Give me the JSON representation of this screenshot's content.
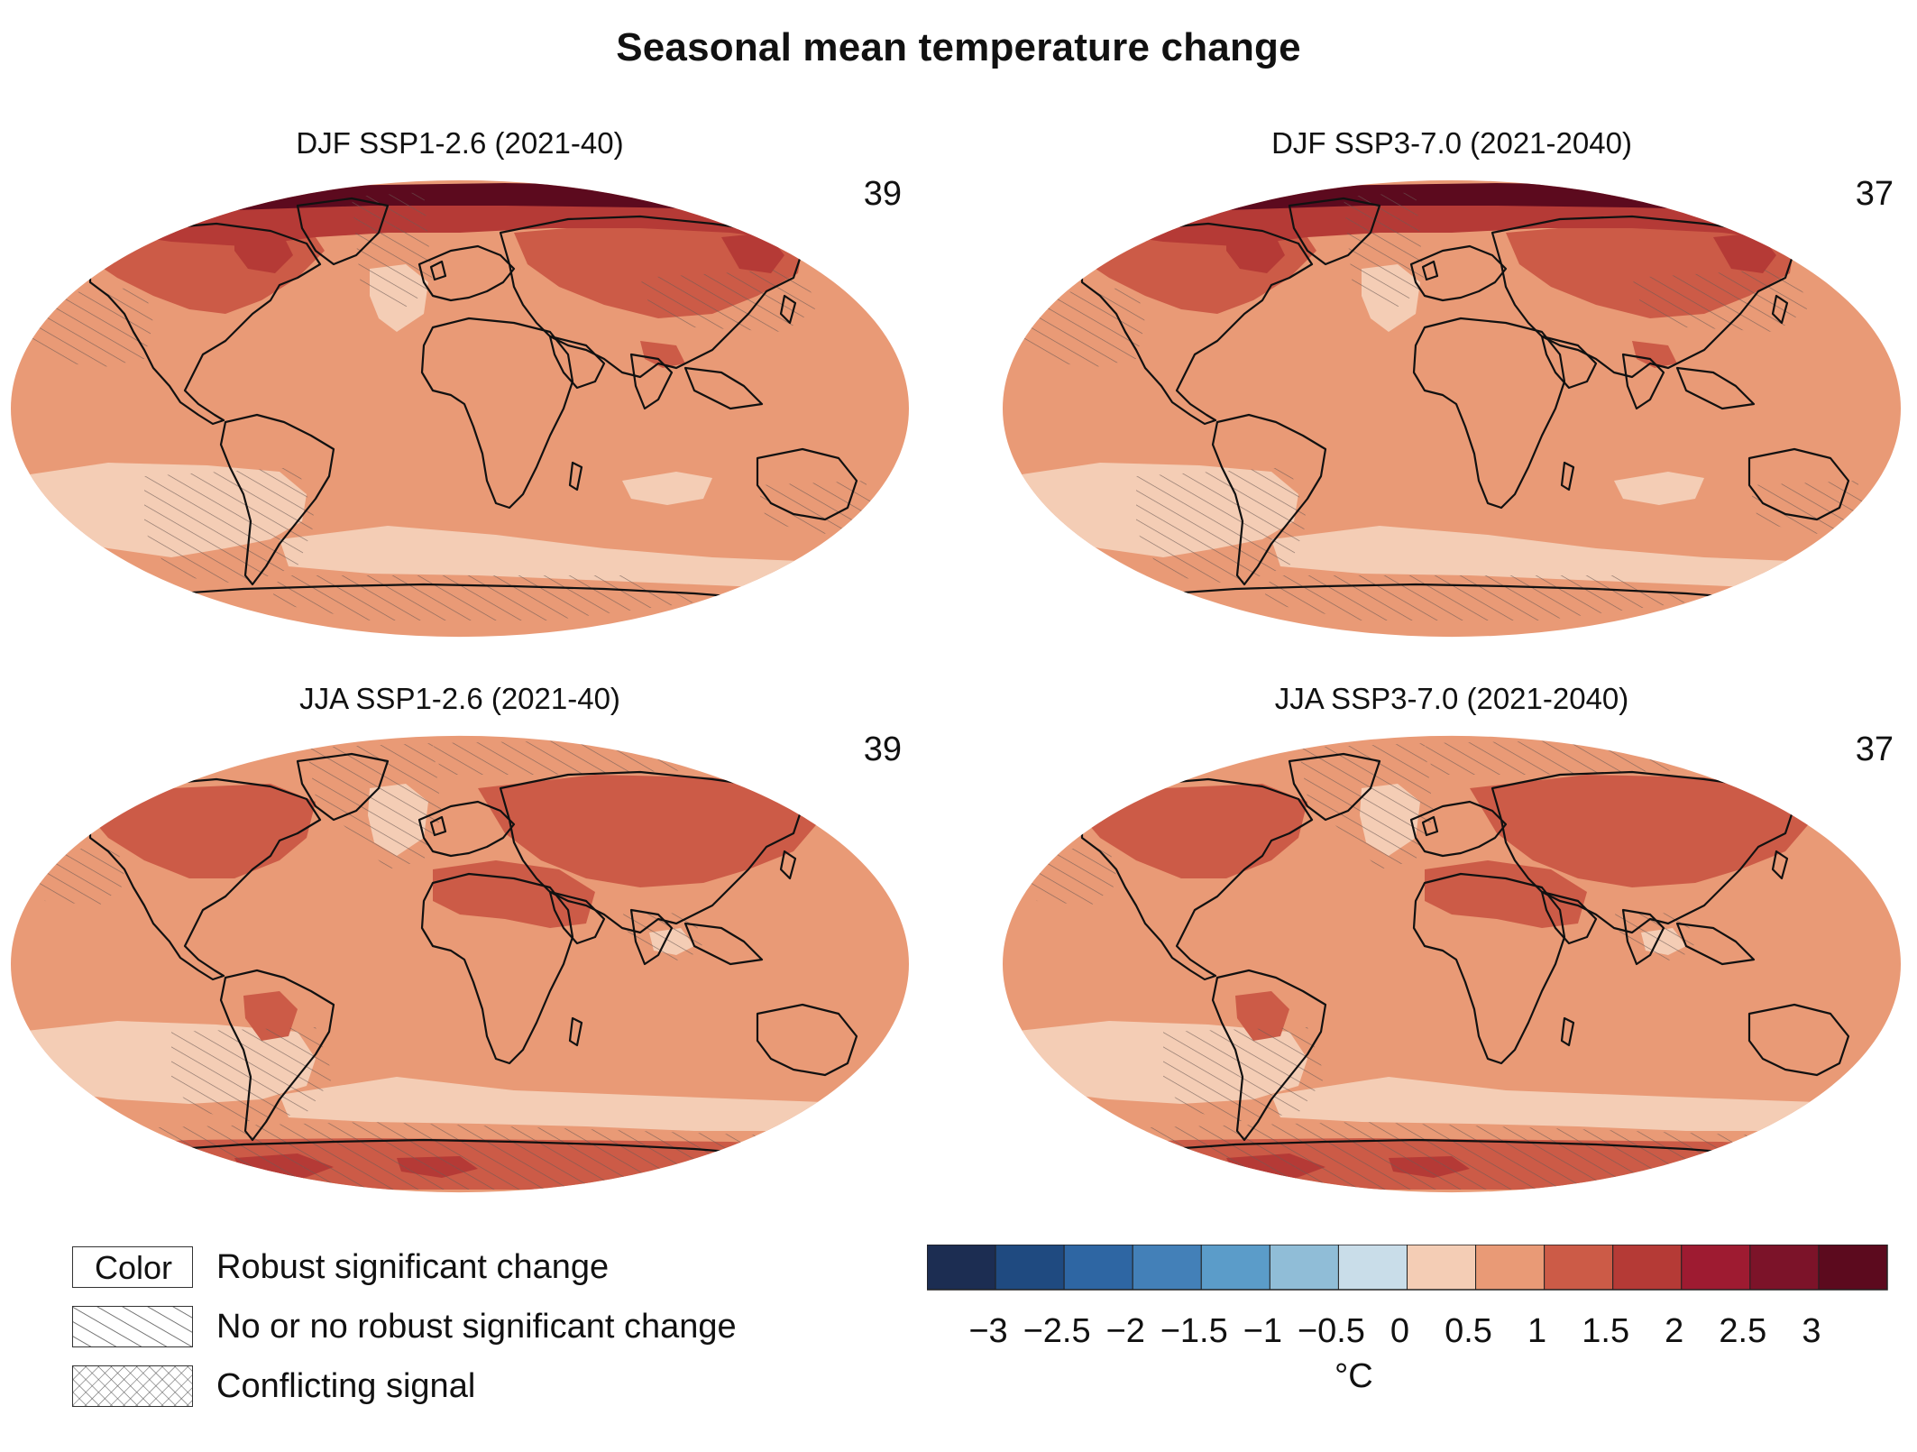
{
  "title": "Seasonal mean temperature change",
  "panels": [
    {
      "title": "DJF SSP1-2.6 (2021-40)",
      "count": "39",
      "season": "DJF"
    },
    {
      "title": "DJF SSP3-7.0 (2021-2040)",
      "count": "37",
      "season": "DJF"
    },
    {
      "title": "JJA SSP1-2.6 (2021-40)",
      "count": "39",
      "season": "JJA"
    },
    {
      "title": "JJA SSP3-7.0 (2021-2040)",
      "count": "37",
      "season": "JJA"
    }
  ],
  "legend": {
    "color_label": "Color",
    "robust": "Robust significant change",
    "no_robust": "No or no robust significant change",
    "conflicting": "Conflicting signal"
  },
  "colorbar": {
    "unit": "°C",
    "ticks": [
      "−3",
      "−2.5",
      "−2",
      "−1.5",
      "−1",
      "−0.5",
      "0",
      "0.5",
      "1",
      "1.5",
      "2",
      "2.5",
      "3"
    ],
    "colors": [
      "#1c2d52",
      "#1f4a80",
      "#2e66a3",
      "#4380b8",
      "#5b9cc9",
      "#90bdd7",
      "#c9dde9",
      "#f4cdb5",
      "#e99a76",
      "#cc5b47",
      "#b53a36",
      "#9e1b31",
      "#7c1329",
      "#5c0a1e"
    ]
  },
  "colors": {
    "ocean_base": "#e99a76",
    "light": "#f4cdb5",
    "mid": "#cc5b47",
    "high": "#b53a36",
    "very_high": "#7c1329",
    "extreme": "#5c0a1e",
    "coast": "#111111"
  }
}
